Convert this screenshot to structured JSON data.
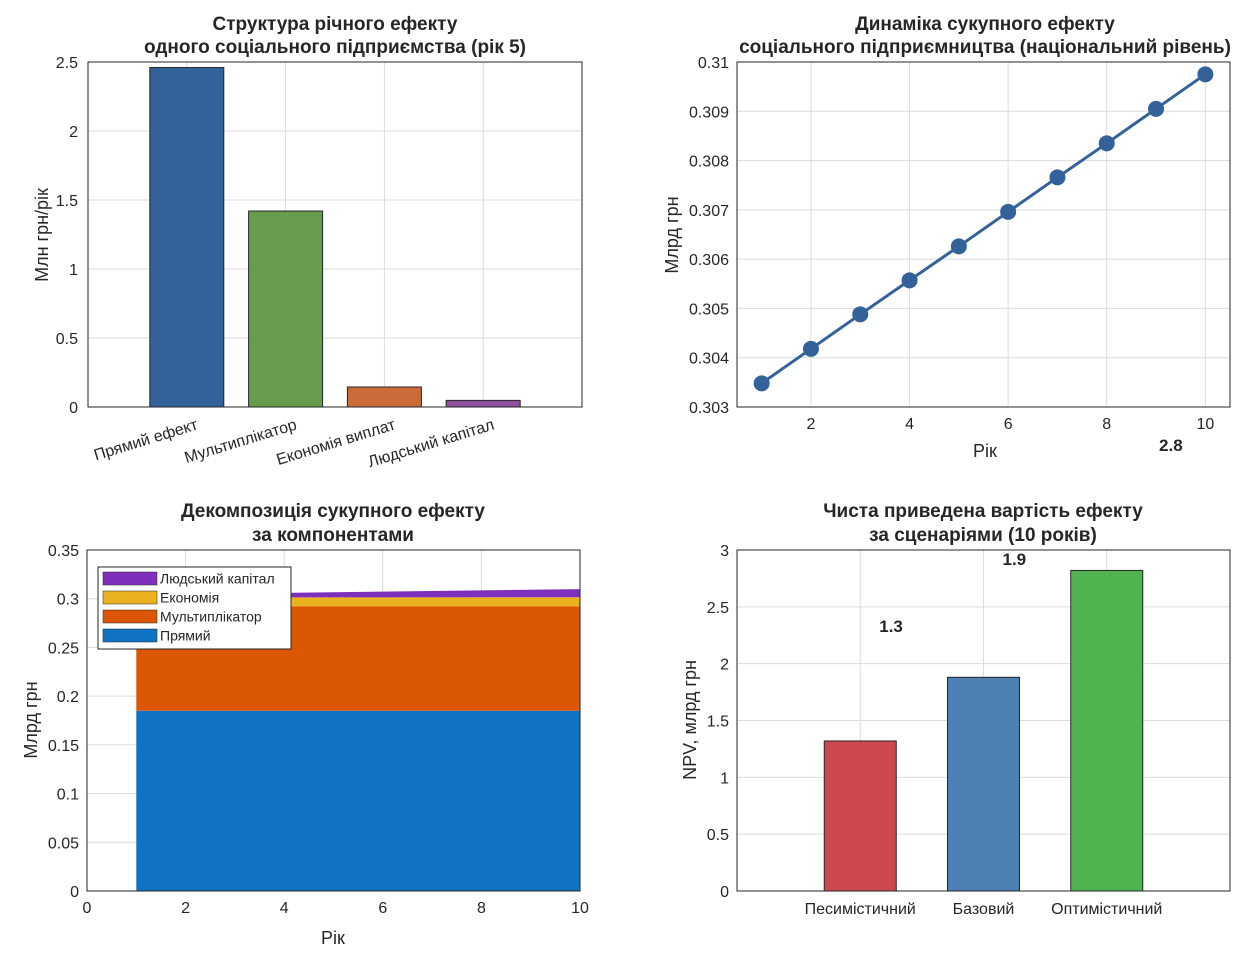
{
  "figure": {
    "background": "#ffffff",
    "panel_background": "#ffffff"
  },
  "chart_data": [
    {
      "id": "p1",
      "type": "bar",
      "title": [
        "Структура річного ефекту",
        "одного соціального підприємства (рік 5)"
      ],
      "xlabel": "",
      "ylabel": "Млн грн/рік",
      "categories": [
        "Прямий ефект",
        "Мультиплікатор",
        "Економія виплат",
        "Людський капітал"
      ],
      "values": [
        2.46,
        1.42,
        0.145,
        0.048
      ],
      "colors": [
        "#33619a",
        "#679c4e",
        "#cc6b3a",
        "#8f4f9e"
      ],
      "ylim": [
        0,
        2.5
      ],
      "yticks": [
        0,
        0.5,
        1,
        1.5,
        2,
        2.5
      ],
      "ytick_labels": [
        "0",
        "0.5",
        "1",
        "1.5",
        "2",
        "2.5"
      ],
      "grid": true
    },
    {
      "id": "p2",
      "type": "line",
      "title": [
        "Динаміка сукупного ефекту",
        "соціального підприємництва (національний рівень)"
      ],
      "xlabel": "Рік",
      "ylabel": "Млрд грн",
      "x": [
        1,
        2,
        3,
        4,
        5,
        6,
        7,
        8,
        9,
        10
      ],
      "y": [
        0.30348,
        0.30418,
        0.30488,
        0.30557,
        0.30626,
        0.30696,
        0.30766,
        0.30835,
        0.30905,
        0.30975
      ],
      "color": "#33619a",
      "xlim": [
        0.5,
        10.5
      ],
      "ylim": [
        0.303,
        0.31
      ],
      "xticks": [
        2,
        4,
        6,
        8,
        10
      ],
      "xtick_labels": [
        "2",
        "4",
        "6",
        "8",
        "10"
      ],
      "yticks": [
        0.303,
        0.304,
        0.305,
        0.306,
        0.307,
        0.308,
        0.309,
        0.31
      ],
      "ytick_labels": [
        "0.303",
        "0.304",
        "0.305",
        "0.306",
        "0.307",
        "0.308",
        "0.309",
        "0.31"
      ],
      "grid": true,
      "annotations": [
        {
          "text": "2.8",
          "x": 9.3,
          "y": 0.30211
        }
      ]
    },
    {
      "id": "p3",
      "type": "area",
      "title": [
        "Декомпозиція сукупного ефекту",
        "за компонентами"
      ],
      "xlabel": "Рік",
      "ylabel": "Млрд грн",
      "x": [
        1,
        10
      ],
      "series": [
        {
          "name": "Прямий",
          "values": [
            0.185,
            0.185
          ],
          "color": "#0f72c2"
        },
        {
          "name": "Мультиплікатор",
          "values": [
            0.107,
            0.107
          ],
          "color": "#dc5703"
        },
        {
          "name": "Економія",
          "values": [
            0.0092,
            0.0096
          ],
          "color": "#ecb11f"
        },
        {
          "name": "Людський капітал",
          "values": [
            0.0029,
            0.0083
          ],
          "color": "#7e2fbc"
        }
      ],
      "legend_order": [
        "Людський капітал",
        "Економія",
        "Мультиплікатор",
        "Прямий"
      ],
      "legend_location": "top-left",
      "xlim": [
        0,
        10
      ],
      "ylim": [
        0,
        0.35
      ],
      "xticks": [
        0,
        2,
        4,
        6,
        8,
        10
      ],
      "xtick_labels": [
        "0",
        "2",
        "4",
        "6",
        "8",
        "10"
      ],
      "yticks": [
        0,
        0.05,
        0.1,
        0.15,
        0.2,
        0.25,
        0.3,
        0.35
      ],
      "ytick_labels": [
        "0",
        "0.05",
        "0.1",
        "0.15",
        "0.2",
        "0.25",
        "0.3",
        "0.35"
      ],
      "grid": true
    },
    {
      "id": "p4",
      "type": "bar",
      "title": [
        "Чиста приведена вартість ефекту",
        "за сценаріями (10 років)"
      ],
      "xlabel": "",
      "ylabel": "NPV, млрд грн",
      "categories": [
        "Песимістичний",
        "Базовий",
        "Оптимістичний"
      ],
      "values": [
        1.32,
        1.88,
        2.82
      ],
      "colors": [
        "#cc4a4d",
        "#4e80b3",
        "#4fb34f"
      ],
      "ylim": [
        0,
        3
      ],
      "yticks": [
        0,
        0.5,
        1,
        1.5,
        2,
        2.5,
        3
      ],
      "ytick_labels": [
        "0",
        "0.5",
        "1",
        "1.5",
        "2",
        "2.5",
        "3"
      ],
      "grid": true,
      "annotations": [
        {
          "text": "1.3",
          "x": 0.25,
          "y": 2.28
        },
        {
          "text": "1.9",
          "x": 1.25,
          "y": 2.87
        }
      ]
    }
  ]
}
